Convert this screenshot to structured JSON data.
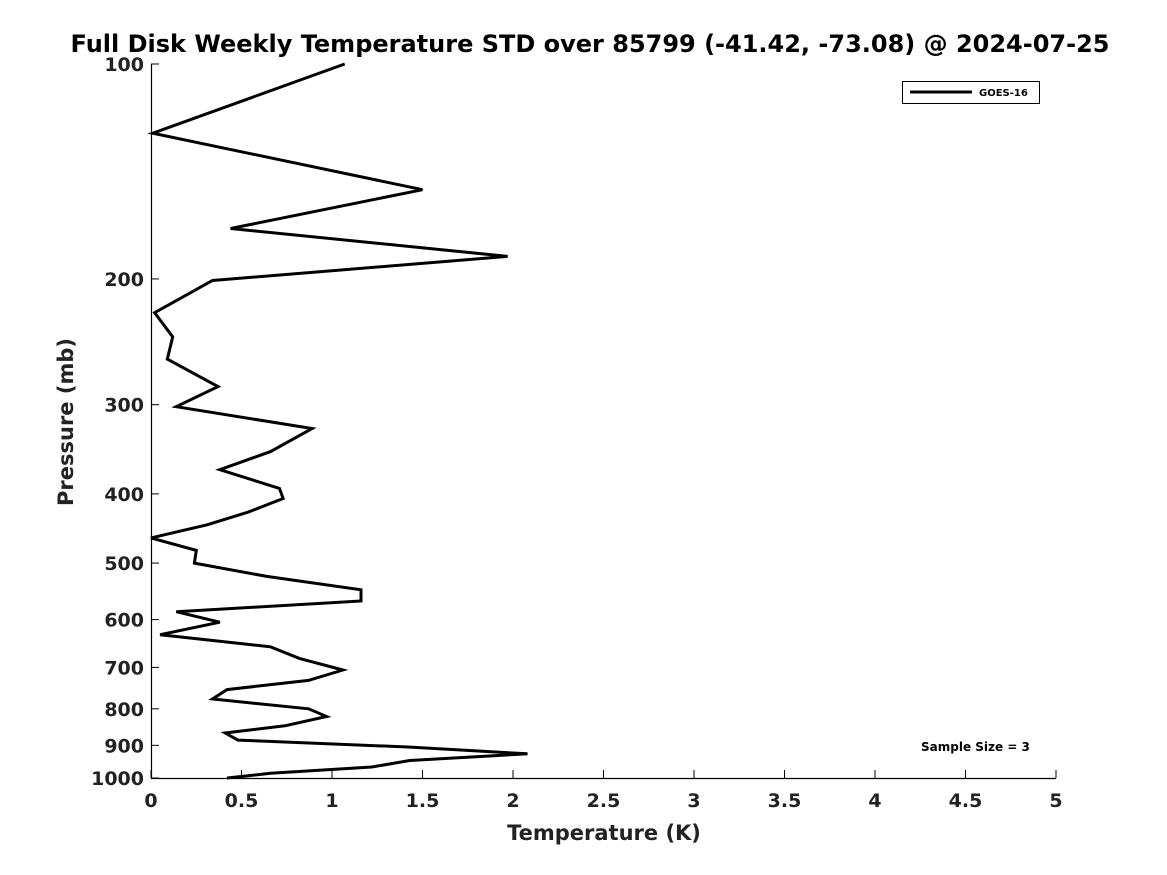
{
  "chart_data": {
    "type": "line",
    "title": "Full Disk Weekly Temperature STD over 85799 (-41.42, -73.08) @ 2024-07-25",
    "xlabel": "Temperature (K)",
    "ylabel": "Pressure (mb)",
    "xlim": [
      0,
      5
    ],
    "ylim": [
      100,
      1000
    ],
    "y_scale": "log",
    "y_reversed": true,
    "grid": false,
    "xticks": [
      0,
      0.5,
      1,
      1.5,
      2,
      2.5,
      3,
      3.5,
      4,
      4.5,
      5
    ],
    "xtick_labels": [
      "0",
      "0.5",
      "1",
      "1.5",
      "2",
      "2.5",
      "3",
      "3.5",
      "4",
      "4.5",
      "5"
    ],
    "yticks": [
      100,
      200,
      300,
      400,
      500,
      600,
      700,
      800,
      900,
      1000
    ],
    "ytick_labels": [
      "100",
      "200",
      "300",
      "400",
      "500",
      "600",
      "700",
      "800",
      "900",
      "1000"
    ],
    "legend": {
      "entries": [
        "GOES-16"
      ],
      "location": "top-right"
    },
    "annotation": "Sample Size = 3",
    "series": [
      {
        "name": "GOES-16",
        "color": "#000000",
        "points": [
          [
            1.07,
            100
          ],
          [
            0.01,
            125
          ],
          [
            1.5,
            150
          ],
          [
            0.44,
            170
          ],
          [
            1.97,
            186
          ],
          [
            0.34,
            201
          ],
          [
            0.02,
            223
          ],
          [
            0.12,
            241
          ],
          [
            0.09,
            259
          ],
          [
            0.37,
            283
          ],
          [
            0.14,
            302
          ],
          [
            0.89,
            324
          ],
          [
            0.66,
            349
          ],
          [
            0.38,
            370
          ],
          [
            0.71,
            393
          ],
          [
            0.73,
            406
          ],
          [
            0.54,
            424
          ],
          [
            0.31,
            442
          ],
          [
            0.0,
            461
          ],
          [
            0.25,
            480
          ],
          [
            0.24,
            500
          ],
          [
            0.64,
            522
          ],
          [
            1.16,
            545
          ],
          [
            1.16,
            565
          ],
          [
            0.14,
            585
          ],
          [
            0.38,
            605
          ],
          [
            0.05,
            630
          ],
          [
            0.66,
            655
          ],
          [
            0.82,
            680
          ],
          [
            1.06,
            706
          ],
          [
            0.87,
            730
          ],
          [
            0.42,
            752
          ],
          [
            0.34,
            775
          ],
          [
            0.87,
            800
          ],
          [
            0.97,
            820
          ],
          [
            0.74,
            845
          ],
          [
            0.41,
            865
          ],
          [
            0.48,
            885
          ],
          [
            1.42,
            905
          ],
          [
            2.08,
            925
          ],
          [
            1.43,
            945
          ],
          [
            1.22,
            965
          ],
          [
            0.66,
            985
          ],
          [
            0.42,
            1000
          ]
        ]
      }
    ]
  }
}
